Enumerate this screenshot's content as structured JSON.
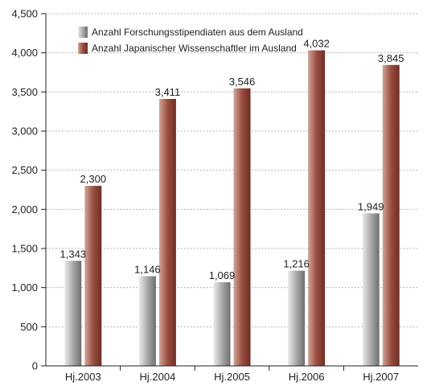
{
  "chart_data": {
    "type": "bar",
    "categories": [
      "Hj.2003",
      "Hj.2004",
      "Hj.2005",
      "Hj.2006",
      "Hj.2007"
    ],
    "series": [
      {
        "name": "Anzahl Forschungsstipendiaten aus dem Ausland",
        "values": [
          1343,
          1146,
          1069,
          1216,
          1949
        ],
        "labels": [
          "1,343",
          "1,146",
          "1,069",
          "1,216",
          "1,949"
        ],
        "color": "#8f8f8f"
      },
      {
        "name": "Anzahl Japanischer Wissenschaftler im Ausland",
        "values": [
          2300,
          3411,
          3546,
          4032,
          3845
        ],
        "labels": [
          "2,300",
          "3,411",
          "3,546",
          "4,032",
          "3,845"
        ],
        "color": "#8a3f35"
      }
    ],
    "ylim": [
      0,
      4500
    ],
    "yticks": [
      0,
      500,
      1000,
      1500,
      2000,
      2500,
      3000,
      3500,
      4000,
      4500
    ],
    "ytick_labels": [
      "0",
      "500",
      "1,000",
      "1,500",
      "2,000",
      "2,500",
      "3,000",
      "3,500",
      "4,000",
      "4,500"
    ],
    "grid": true,
    "legend_position": "top-left"
  }
}
